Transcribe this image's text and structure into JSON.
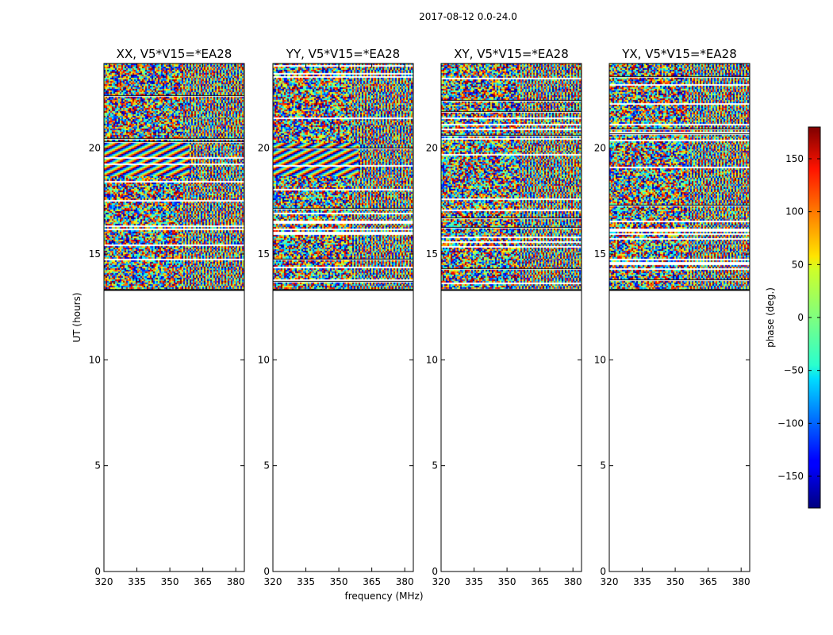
{
  "figure": {
    "suptitle": "2017-08-12 0.0-24.0",
    "xlabel": "frequency (MHz)",
    "ylabel": "UT (hours)"
  },
  "chart_data": {
    "type": "heatmap",
    "x_ticks": [
      "320",
      "335",
      "350",
      "365",
      "380"
    ],
    "xlim": [
      320,
      383.9
    ],
    "y_ticks": [
      "0",
      "5",
      "10",
      "15",
      "20"
    ],
    "ylim": [
      0,
      24
    ],
    "panels": [
      {
        "title": "XX, V5*V15=*EA28",
        "data_start_ut": 13.3,
        "data_end_ut": 24.0
      },
      {
        "title": "YY, V5*V15=*EA28",
        "data_start_ut": 13.3,
        "data_end_ut": 24.0
      },
      {
        "title": "XY, V5*V15=*EA28",
        "data_start_ut": 13.3,
        "data_end_ut": 24.0
      },
      {
        "title": "YX, V5*V15=*EA28",
        "data_start_ut": 13.3,
        "data_end_ut": 24.0
      }
    ],
    "colorbar": {
      "label": "phase (deg.)",
      "range": [
        -180,
        180
      ],
      "ticks": [
        "150",
        "100",
        "50",
        "0",
        "−50",
        "−100",
        "−150"
      ],
      "tick_values": [
        150,
        100,
        50,
        0,
        -50,
        -100,
        -150
      ],
      "colormap": "jet"
    }
  }
}
